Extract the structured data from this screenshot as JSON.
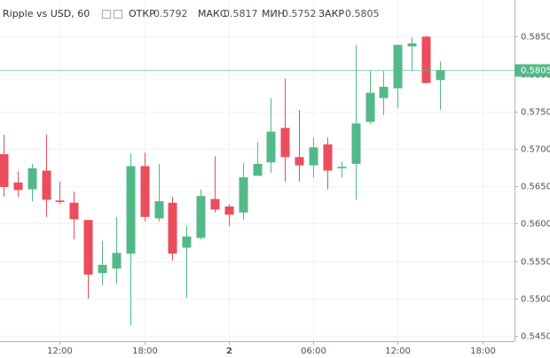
{
  "chart_data": {
    "type": "candlestick",
    "title": "Ripple vs USD, 60",
    "ohlc_labels": {
      "open": "ОТКР",
      "high": "МАКС",
      "low": "МИН",
      "close": "ЗАКР"
    },
    "x": [
      0,
      1,
      2,
      3,
      4,
      5,
      6,
      7,
      8,
      9,
      10,
      11,
      12,
      13,
      14,
      15,
      16,
      17,
      18,
      19,
      20,
      21,
      22,
      23,
      24,
      25,
      26,
      27,
      28,
      29,
      30,
      31
    ],
    "open": [
      0.5693,
      0.5655,
      0.5646,
      0.5671,
      0.5631,
      0.5628,
      0.5605,
      0.5534,
      0.554,
      0.556,
      0.5677,
      0.5607,
      0.5628,
      0.5568,
      0.5581,
      0.5633,
      0.5623,
      0.5615,
      0.5664,
      0.5682,
      0.5728,
      0.5689,
      0.5678,
      0.5706,
      0.5674,
      0.568,
      0.5736,
      0.5768,
      0.5781,
      0.5837,
      0.585,
      0.5792
    ],
    "high": [
      0.5719,
      0.567,
      0.568,
      0.5719,
      0.5656,
      0.5643,
      0.5605,
      0.5577,
      0.5609,
      0.5694,
      0.5695,
      0.568,
      0.5636,
      0.5597,
      0.5646,
      0.569,
      0.5626,
      0.5681,
      0.5709,
      0.5768,
      0.5794,
      0.5752,
      0.5715,
      0.5715,
      0.5683,
      0.5839,
      0.5804,
      0.5804,
      0.5839,
      0.5849,
      0.5851,
      0.5817
    ],
    "low": [
      0.5636,
      0.5636,
      0.563,
      0.5609,
      0.5626,
      0.5579,
      0.55,
      0.5518,
      0.552,
      0.5464,
      0.5603,
      0.5603,
      0.5551,
      0.5501,
      0.5579,
      0.5615,
      0.5597,
      0.5605,
      0.5664,
      0.5668,
      0.5656,
      0.5656,
      0.5662,
      0.5646,
      0.5662,
      0.5632,
      0.5733,
      0.5745,
      0.5754,
      0.5804,
      0.5788,
      0.5752
    ],
    "close": [
      0.5649,
      0.5645,
      0.5674,
      0.5632,
      0.5629,
      0.5606,
      0.5532,
      0.5545,
      0.5561,
      0.5677,
      0.5609,
      0.563,
      0.556,
      0.5583,
      0.5637,
      0.5619,
      0.5612,
      0.5662,
      0.568,
      0.5723,
      0.5689,
      0.5678,
      0.5702,
      0.5671,
      0.5676,
      0.5734,
      0.5775,
      0.5783,
      0.5839,
      0.5841,
      0.5788,
      0.5805
    ],
    "up_color": "#53b987",
    "down_color": "#eb4d5c",
    "xlim": [
      -0.25,
      36.3
    ],
    "xticks": [
      {
        "value": 4,
        "label": "12:00"
      },
      {
        "value": 10,
        "label": "18:00"
      },
      {
        "value": 16,
        "label": "2"
      },
      {
        "value": 22,
        "label": "06:00"
      },
      {
        "value": 28,
        "label": "12:00"
      },
      {
        "value": 34,
        "label": "18:00"
      }
    ],
    "ylim": [
      0.5443,
      0.5899
    ],
    "yticks": [
      {
        "value": 0.545,
        "label": "0.5450"
      },
      {
        "value": 0.55,
        "label": "0.5500"
      },
      {
        "value": 0.555,
        "label": "0.5550"
      },
      {
        "value": 0.56,
        "label": "0.5600"
      },
      {
        "value": 0.565,
        "label": "0.5650"
      },
      {
        "value": 0.57,
        "label": "0.5700"
      },
      {
        "value": 0.575,
        "label": "0.5750"
      },
      {
        "value": 0.58,
        "label": "0.5800"
      },
      {
        "value": 0.585,
        "label": "0.5850"
      }
    ],
    "grid": true
  }
}
